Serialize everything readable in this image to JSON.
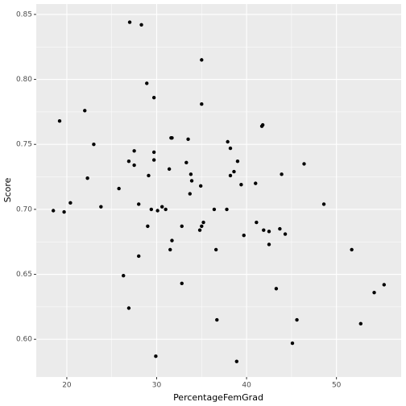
{
  "chart_data": {
    "type": "scatter",
    "x_label": "PercentageFemGrad",
    "y_label": "Score",
    "x": [
      27.0,
      28.3,
      35.0,
      28.9,
      29.7,
      35.0,
      22.0,
      19.2,
      41.8,
      41.7,
      23.0,
      37.9,
      31.7,
      31.6,
      33.5,
      38.2,
      27.5,
      29.7,
      26.9,
      29.7,
      33.3,
      39.0,
      46.4,
      27.5,
      31.4,
      38.6,
      33.8,
      38.2,
      43.9,
      29.1,
      22.3,
      33.9,
      39.4,
      41.0,
      34.9,
      25.8,
      33.7,
      20.4,
      23.8,
      28.0,
      48.6,
      30.6,
      31.0,
      29.4,
      30.1,
      36.4,
      37.8,
      18.5,
      19.7,
      35.2,
      41.1,
      35.0,
      32.8,
      29.0,
      43.7,
      34.8,
      41.9,
      42.5,
      44.3,
      39.7,
      31.7,
      42.5,
      31.5,
      36.6,
      51.7,
      28.0,
      26.3,
      32.8,
      55.3,
      43.3,
      54.2,
      26.9,
      45.6,
      36.7,
      52.7,
      45.1,
      29.9,
      38.9
    ],
    "values": [
      0.844,
      0.842,
      0.815,
      0.797,
      0.786,
      0.781,
      0.776,
      0.768,
      0.765,
      0.764,
      0.75,
      0.752,
      0.755,
      0.755,
      0.754,
      0.747,
      0.745,
      0.744,
      0.737,
      0.738,
      0.736,
      0.737,
      0.735,
      0.734,
      0.731,
      0.729,
      0.727,
      0.726,
      0.727,
      0.726,
      0.724,
      0.722,
      0.719,
      0.72,
      0.718,
      0.716,
      0.712,
      0.705,
      0.702,
      0.704,
      0.704,
      0.702,
      0.7,
      0.7,
      0.699,
      0.7,
      0.7,
      0.699,
      0.698,
      0.69,
      0.69,
      0.687,
      0.687,
      0.687,
      0.685,
      0.684,
      0.684,
      0.683,
      0.681,
      0.68,
      0.676,
      0.673,
      0.669,
      0.669,
      0.669,
      0.664,
      0.649,
      0.643,
      0.642,
      0.639,
      0.636,
      0.624,
      0.615,
      0.615,
      0.612,
      0.597,
      0.587,
      0.583
    ],
    "color": "#000000",
    "xlim": [
      16.6,
      57.2
    ],
    "ylim": [
      0.571,
      0.858
    ],
    "xticks": [
      20,
      30,
      40,
      50
    ],
    "yticks": [
      {
        "value": 0.6,
        "label": "0.60"
      },
      0.65,
      {
        "value": 0.7,
        "label": "0.70"
      },
      0.75,
      {
        "value": 0.8,
        "label": "0.80"
      },
      0.85
    ],
    "grid": true
  }
}
